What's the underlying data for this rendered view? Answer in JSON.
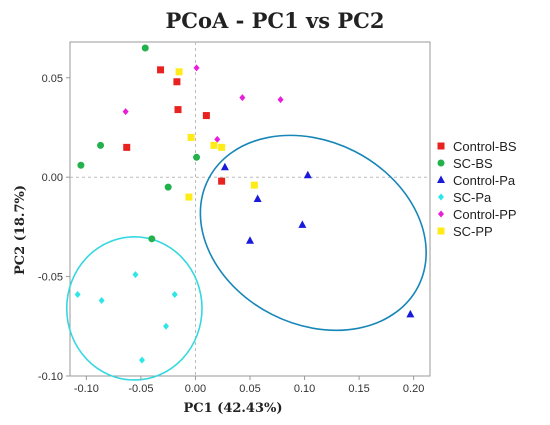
{
  "chart_data": {
    "type": "scatter",
    "title": "PCoA - PC1 vs PC2",
    "xlabel": "PC1 (42.43%)",
    "ylabel": "PC2 (18.7%)",
    "xlim": [
      -0.115,
      0.215
    ],
    "ylim": [
      -0.1,
      0.068
    ],
    "xticks": [
      -0.1,
      -0.05,
      0.0,
      0.05,
      0.1,
      0.15,
      0.2
    ],
    "xtick_labels": [
      "-0.10",
      "-0.05",
      "0.00",
      "0.05",
      "0.10",
      "0.15",
      "0.20"
    ],
    "yticks": [
      -0.1,
      -0.05,
      0.0,
      0.05
    ],
    "ytick_labels": [
      "-0.10",
      "-0.05",
      "0.00",
      "0.05"
    ],
    "zero_lines": true,
    "legend_position": "right",
    "series": [
      {
        "name": "Control-BS",
        "marker": "square",
        "color": "#e8221f",
        "points": [
          [
            -0.032,
            0.054
          ],
          [
            -0.017,
            0.048
          ],
          [
            -0.016,
            0.034
          ],
          [
            0.01,
            0.031
          ],
          [
            -0.063,
            0.015
          ],
          [
            0.024,
            -0.002
          ]
        ]
      },
      {
        "name": "SC-BS",
        "marker": "circle",
        "color": "#22b14c",
        "points": [
          [
            -0.046,
            0.065
          ],
          [
            -0.087,
            0.016
          ],
          [
            -0.105,
            0.006
          ],
          [
            0.001,
            0.01
          ],
          [
            -0.025,
            -0.005
          ],
          [
            -0.04,
            -0.031
          ]
        ]
      },
      {
        "name": "Control-Pa",
        "marker": "triangle",
        "color": "#1a1adc",
        "points": [
          [
            0.027,
            0.005
          ],
          [
            0.103,
            0.001
          ],
          [
            0.057,
            -0.011
          ],
          [
            0.05,
            -0.032
          ],
          [
            0.098,
            -0.024
          ],
          [
            0.197,
            -0.069
          ]
        ]
      },
      {
        "name": "SC-Pa",
        "marker": "diamond",
        "color": "#2ee6e6",
        "points": [
          [
            -0.055,
            -0.049
          ],
          [
            -0.108,
            -0.059
          ],
          [
            -0.086,
            -0.062
          ],
          [
            -0.019,
            -0.059
          ],
          [
            -0.027,
            -0.075
          ],
          [
            -0.049,
            -0.092
          ]
        ]
      },
      {
        "name": "Control-PP",
        "marker": "diamond",
        "color": "#e81ed8",
        "points": [
          [
            0.001,
            0.055
          ],
          [
            -0.064,
            0.033
          ],
          [
            0.043,
            0.04
          ],
          [
            0.078,
            0.039
          ],
          [
            0.02,
            0.019
          ]
        ]
      },
      {
        "name": "SC-PP",
        "marker": "square",
        "color": "#ffeb18",
        "points": [
          [
            -0.015,
            0.053
          ],
          [
            -0.004,
            0.02
          ],
          [
            0.017,
            0.016
          ],
          [
            0.024,
            0.015
          ],
          [
            0.054,
            -0.004
          ],
          [
            -0.006,
            -0.01
          ]
        ]
      }
    ],
    "ellipses": [
      {
        "color": "#1786b8",
        "cx": 0.108,
        "cy": -0.028,
        "rx": 0.108,
        "ry": 0.046,
        "rotation_deg": 27
      },
      {
        "color": "#36d8e0",
        "cx": -0.056,
        "cy": -0.066,
        "rx": 0.062,
        "ry": 0.036,
        "rotation_deg": 0
      }
    ]
  }
}
